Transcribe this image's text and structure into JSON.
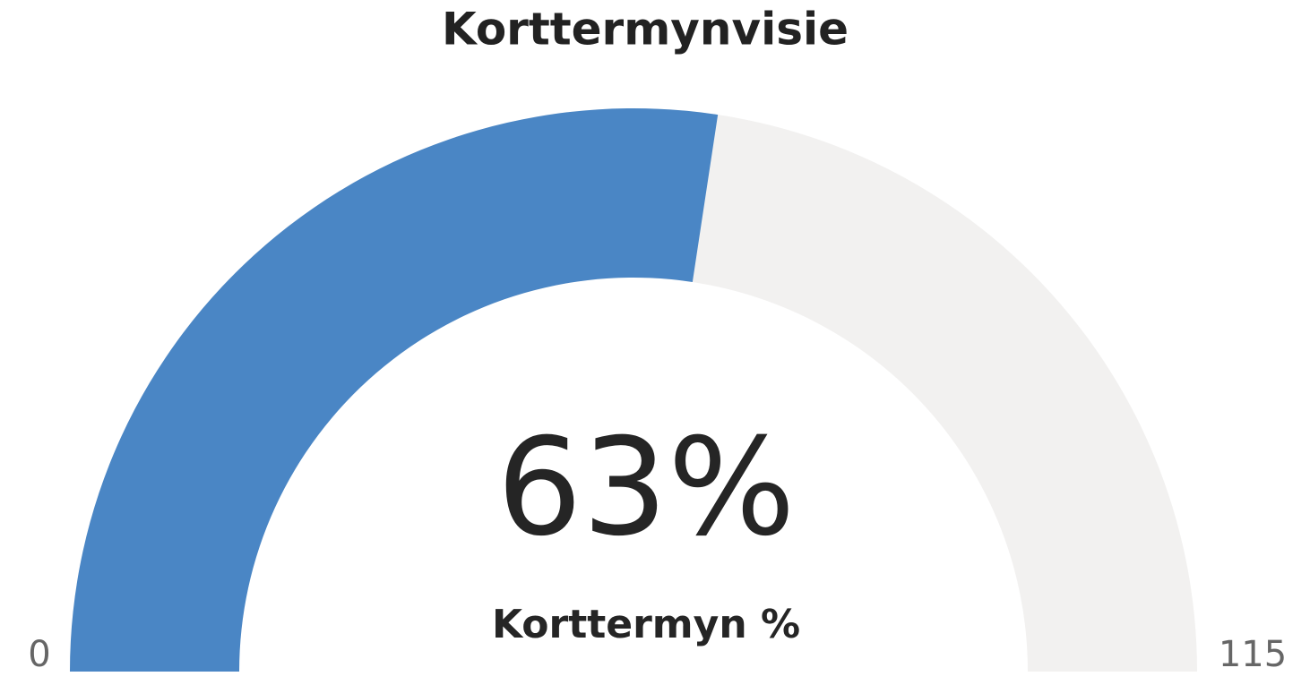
{
  "chart_data": {
    "type": "gauge",
    "title": "Korttermynvisie",
    "values": [
      63
    ],
    "value_labels": [
      "63%"
    ],
    "label": "Korttermyn %",
    "ylim": [
      0,
      115
    ],
    "yticks": [
      0,
      115
    ],
    "color": "#4a86c5",
    "track_color": "#f2f1f0"
  }
}
